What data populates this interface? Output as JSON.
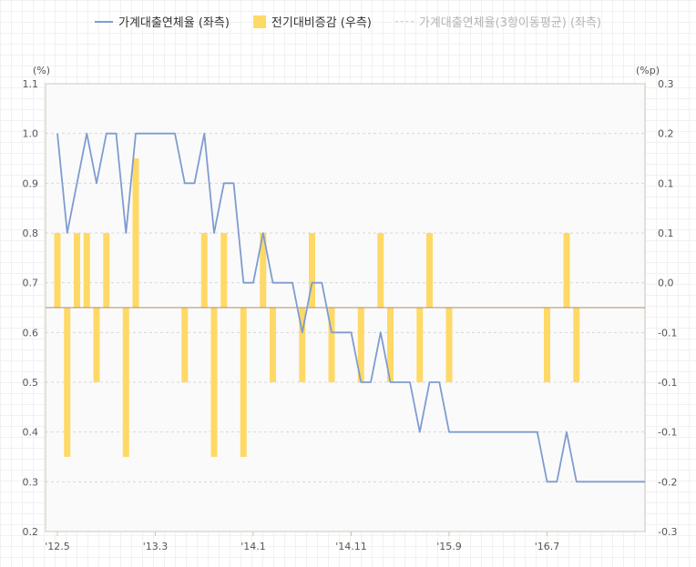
{
  "legend": {
    "series1": "가계대출연체율 (좌측)",
    "series2": "전기대비증감 (우측)",
    "series3": "가계대출연체율(3항이동평균) (좌측)"
  },
  "colors": {
    "line": "#7f9cd0",
    "bar": "#ffd966",
    "zero": "#b08c6a",
    "grid": "#d8d8d8"
  },
  "chart_data": {
    "type": "line+bar",
    "left_unit": "(%)",
    "right_unit": "(%p)",
    "left_ylim": [
      0.2,
      1.1
    ],
    "left_ticks": [
      "1.1",
      "1.0",
      "0.9",
      "0.8",
      "0.7",
      "0.6",
      "0.5",
      "0.4",
      "0.3",
      "0.2"
    ],
    "right_ylim": [
      -0.3,
      0.3
    ],
    "right_ticks": [
      "0.3",
      "0.2",
      "0.1",
      "0.1",
      "0.0",
      "-0.1",
      "-0.1",
      "-0.1",
      "-0.2",
      "-0.3"
    ],
    "x_labels": [
      "'12.5",
      "'13.3",
      "'14.1",
      "'14.11",
      "'15.9",
      "'16.7"
    ],
    "x_label_index": [
      0,
      10,
      20,
      30,
      40,
      50
    ],
    "grid": true,
    "legend_position": "top",
    "series": [
      {
        "name": "가계대출연체율 (좌측)",
        "axis": "left",
        "type": "line",
        "values": [
          1.0,
          0.8,
          0.9,
          1.0,
          0.9,
          1.0,
          1.0,
          0.8,
          1.0,
          1.0,
          1.0,
          1.0,
          1.0,
          0.9,
          0.9,
          1.0,
          0.8,
          0.9,
          0.9,
          0.7,
          0.7,
          0.8,
          0.7,
          0.7,
          0.7,
          0.6,
          0.7,
          0.7,
          0.6,
          0.6,
          0.6,
          0.5,
          0.5,
          0.6,
          0.5,
          0.5,
          0.5,
          0.4,
          0.5,
          0.5,
          0.4,
          0.4,
          0.4,
          0.4,
          0.4,
          0.4,
          0.4,
          0.4,
          0.4,
          0.4,
          0.3,
          0.3,
          0.4,
          0.3,
          0.3,
          0.3,
          0.3,
          0.3,
          0.3,
          0.3,
          0.3
        ]
      },
      {
        "name": "전기대비증감 (우측)",
        "axis": "right",
        "type": "bar",
        "values": [
          0.1,
          -0.2,
          0.1,
          0.1,
          -0.1,
          0.1,
          0,
          -0.2,
          0.2,
          0,
          0,
          0,
          0,
          -0.1,
          0,
          0.1,
          -0.2,
          0.1,
          0,
          -0.2,
          0,
          0.1,
          -0.1,
          0,
          0,
          -0.1,
          0.1,
          0,
          -0.1,
          0,
          0,
          -0.1,
          0,
          0.1,
          -0.1,
          0,
          0,
          -0.1,
          0.1,
          0,
          -0.1,
          0,
          0,
          0,
          0,
          0,
          0,
          0,
          0,
          0,
          -0.1,
          0,
          0.1,
          -0.1,
          0,
          0,
          0,
          0,
          0,
          0,
          0
        ]
      },
      {
        "name": "가계대출연체율(3항이동평균) (좌측)",
        "axis": "left",
        "type": "line",
        "hidden": true,
        "values": []
      }
    ]
  }
}
